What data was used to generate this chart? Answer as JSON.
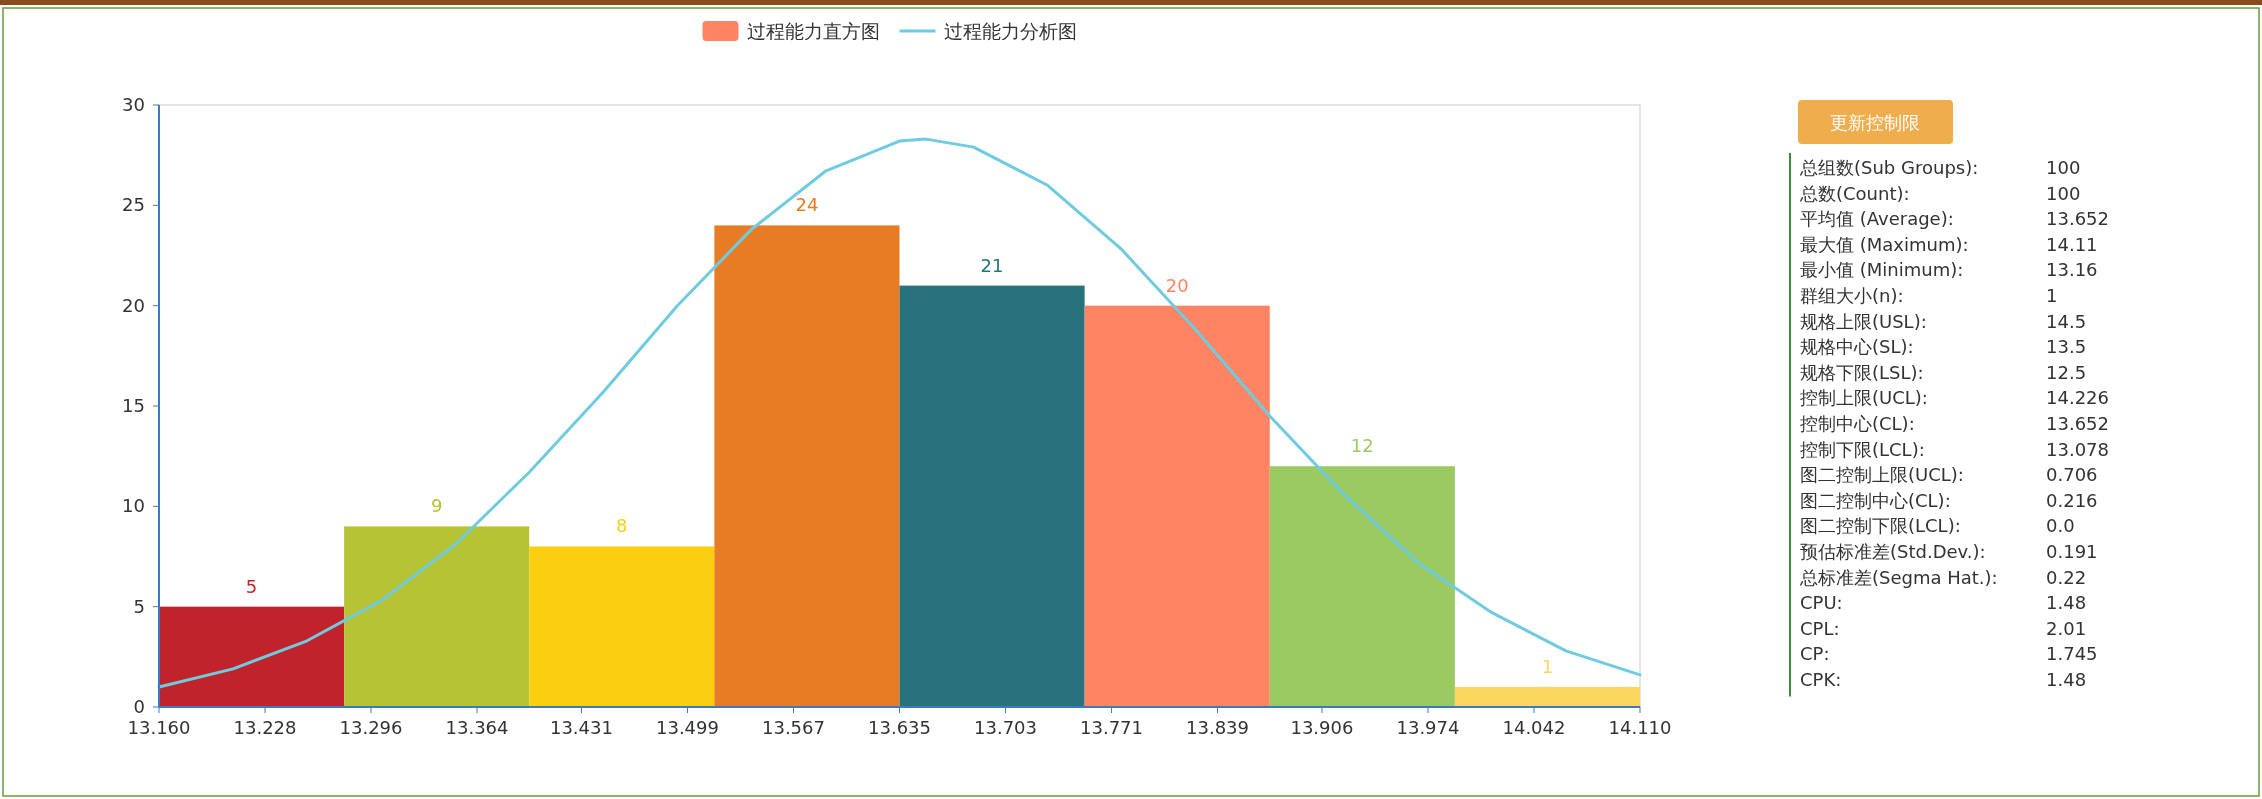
{
  "chart_data": [
    {
      "type": "histogram",
      "legend": "top",
      "xlim": [
        13.16,
        14.11
      ],
      "ylim": [
        0,
        30
      ],
      "yticks": [
        0,
        5,
        10,
        15,
        20,
        25,
        30
      ],
      "xticks": [
        {
          "value": 13.16,
          "label": "13.160"
        },
        13.228,
        13.296,
        13.364,
        13.431,
        13.499,
        13.567,
        13.635,
        13.703,
        13.771,
        13.839,
        13.906,
        13.974,
        14.042,
        {
          "value": 14.11,
          "label": "14.110"
        }
      ],
      "series": [
        {
          "name": "过程能力直方图",
          "type": "histogram",
          "color": "#fe8463",
          "bins": [
            13.16,
            13.27875,
            13.3975,
            13.51625,
            13.635,
            13.75375,
            13.8725,
            13.99125,
            14.11
          ],
          "values": [
            5,
            9,
            8,
            24,
            21,
            20,
            12,
            1
          ],
          "value_labels": [
            "5",
            "9",
            "8",
            "24",
            "21",
            "20",
            "12",
            "1"
          ],
          "colors": [
            "#c1232b",
            "#b5c334",
            "#fcce10",
            "#e87c25",
            "#27727b",
            "#fe8463",
            "#9bca63",
            "#fad860"
          ]
        },
        {
          "name": "过程能力分析图",
          "type": "line",
          "color": "#6ecbe0",
          "x": [
            13.16,
            13.2075,
            13.255,
            13.3025,
            13.35,
            13.3975,
            13.445,
            13.4925,
            13.54,
            13.5875,
            13.635,
            13.652,
            13.6825,
            13.73,
            13.7775,
            13.825,
            13.8725,
            13.92,
            13.9675,
            14.015,
            14.0625,
            14.11
          ],
          "values": [
            1.0,
            1.9,
            3.3,
            5.3,
            8.1,
            11.7,
            15.7,
            20.0,
            23.8,
            26.7,
            28.2,
            28.3,
            27.9,
            26.0,
            22.8,
            18.8,
            14.5,
            10.6,
            7.2,
            4.7,
            2.8,
            1.6
          ]
        }
      ]
    },
    {
      "type": "other",
      "annotations": [
        "更新控制限",
        "总组数(Sub Groups):",
        "100",
        "总数(Count):",
        "100",
        "平均值 (Average):",
        "13.652",
        "最大值 (Maximum):",
        "14.11",
        "最小值 (Minimum):",
        "13.16",
        "群组大小(n):",
        "1",
        "规格上限(USL):",
        "14.5",
        "规格中心(SL):",
        "13.5",
        "规格下限(LSL):",
        "12.5",
        "控制上限(UCL):",
        "14.226",
        "控制中心(CL):",
        "13.652",
        "控制下限(LCL):",
        "13.078",
        "图二控制上限(UCL):",
        "0.706",
        "图二控制中心(CL):",
        "0.216",
        "图二控制下限(LCL):",
        "0.0",
        "预估标准差(Std.Dev.):",
        "0.191",
        "总标准差(Segma Hat.):",
        "0.22",
        "CPU:",
        "1.48",
        "CPL:",
        "2.01",
        "CP:",
        "1.745",
        "CPK:",
        "1.48"
      ]
    }
  ]
}
